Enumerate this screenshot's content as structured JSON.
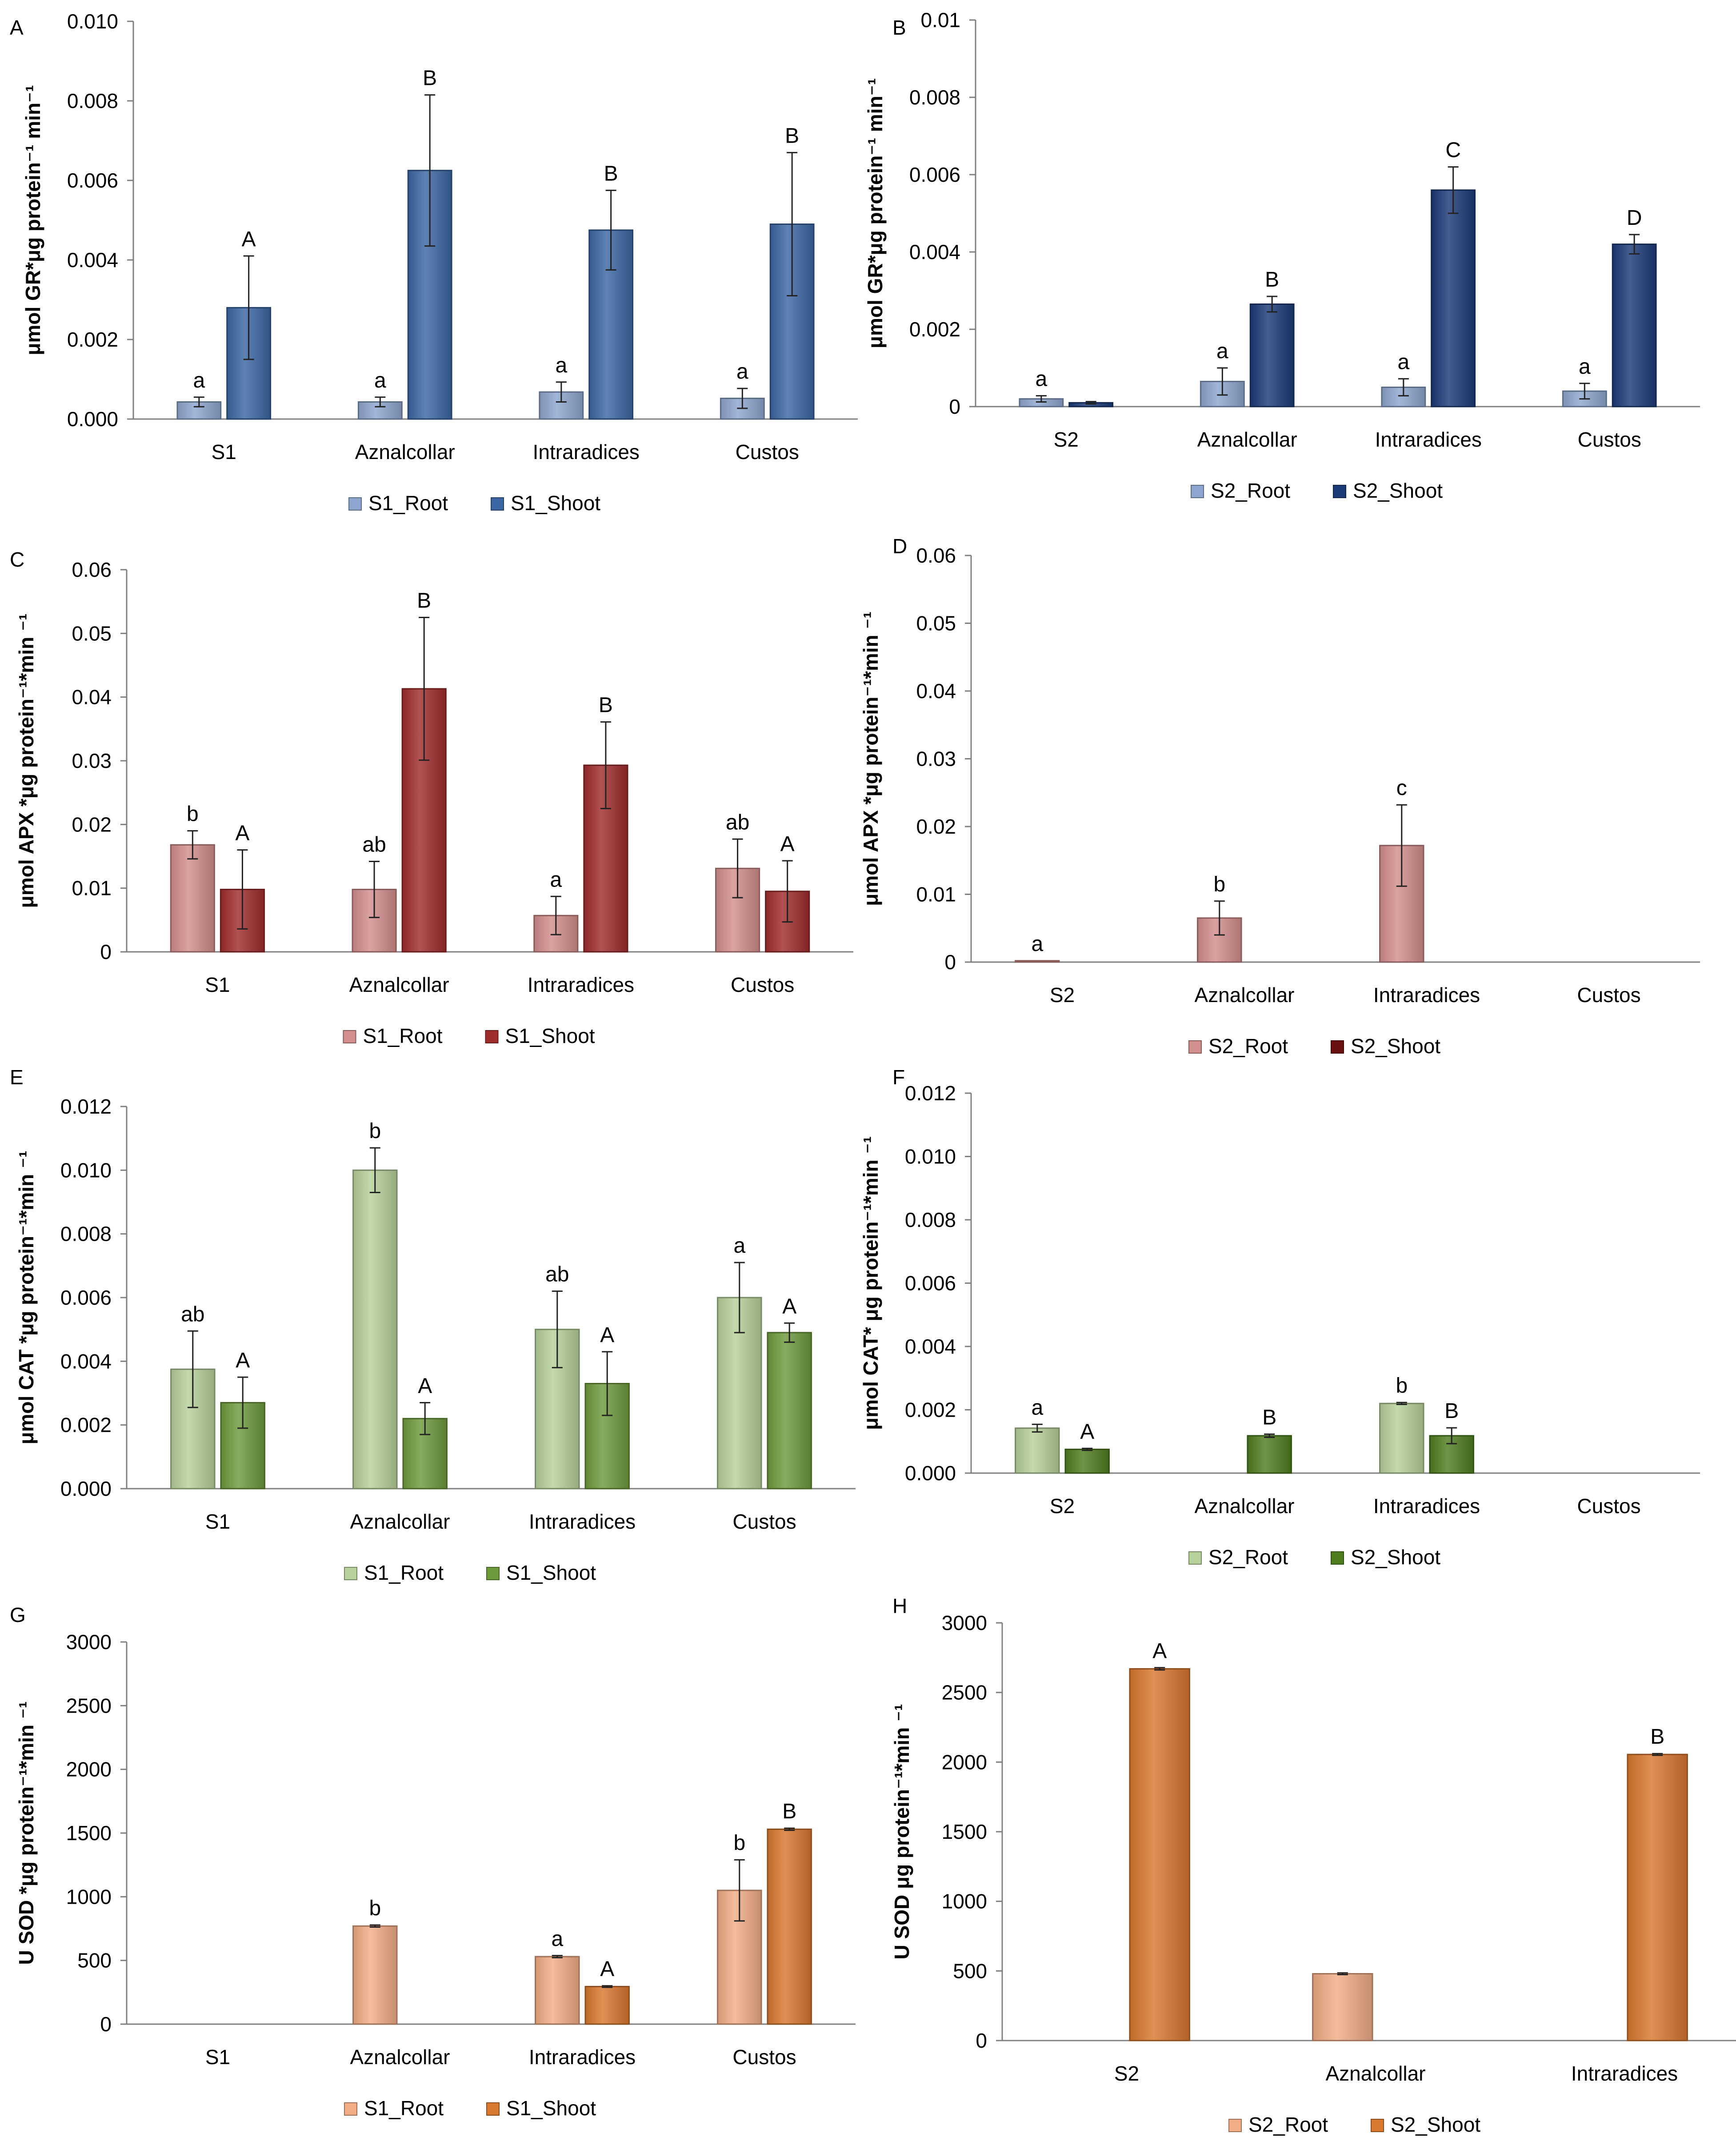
{
  "figure_title": "",
  "chart_data": [
    {
      "panel": "A",
      "type": "bar",
      "ylabel": "μmol GR*μg protein⁻¹ min⁻¹",
      "ylim": [
        0,
        0.01
      ],
      "yticks": [
        "0.000",
        "0.002",
        "0.004",
        "0.006",
        "0.008",
        "0.010"
      ],
      "categories": [
        "S1",
        "Aznalcollar",
        "Intraradices",
        "Custos"
      ],
      "series": [
        {
          "name": "S1_Root",
          "color": "#8ea6cf",
          "values": [
            0.00043,
            0.00043,
            0.00068,
            0.00052
          ],
          "errors": [
            0.00012,
            0.00012,
            0.00025,
            0.00025
          ],
          "letters": [
            "a",
            "a",
            "a",
            "a"
          ]
        },
        {
          "name": "S1_Shoot",
          "color": "#3b66a3",
          "values": [
            0.0028,
            0.00625,
            0.00475,
            0.0049
          ],
          "errors": [
            0.0013,
            0.0019,
            0.001,
            0.0018
          ],
          "letters": [
            "A",
            "B",
            "B",
            "B"
          ]
        }
      ],
      "grid": false,
      "legend": "bottom"
    },
    {
      "panel": "B",
      "type": "bar",
      "ylabel": "μmol GR*μg protein⁻¹ min⁻¹",
      "ylim": [
        0,
        0.01
      ],
      "yticks": [
        "0",
        "0.002",
        "0.004",
        "0.006",
        "0.008",
        "0.01"
      ],
      "categories": [
        "S2",
        "Aznalcollar",
        "Intraradices",
        "Custos"
      ],
      "series": [
        {
          "name": "S2_Root",
          "color": "#8ea6cf",
          "values": [
            0.0002,
            0.00065,
            0.0005,
            0.0004
          ],
          "errors": [
            8e-05,
            0.00035,
            0.00022,
            0.0002
          ],
          "letters": [
            "a",
            "a",
            "a",
            "a"
          ]
        },
        {
          "name": "S2_Shoot",
          "color": "#1b3a78",
          "values": [
            0.0001,
            0.00265,
            0.0056,
            0.0042
          ],
          "errors": [
            3e-05,
            0.0002,
            0.0006,
            0.00025
          ],
          "letters": [
            "",
            "B",
            "C",
            "D"
          ]
        }
      ],
      "grid": false,
      "legend": "bottom"
    },
    {
      "panel": "C",
      "type": "bar",
      "ylabel": "μmol APX *μg protein⁻¹*min ⁻¹",
      "ylim": [
        0,
        0.06
      ],
      "yticks": [
        "0",
        "0.01",
        "0.02",
        "0.03",
        "0.04",
        "0.05",
        "0.06"
      ],
      "categories": [
        "S1",
        "Aznalcollar",
        "Intraradices",
        "Custos"
      ],
      "series": [
        {
          "name": "S1_Root",
          "color": "#d38e8e",
          "values": [
            0.0168,
            0.0098,
            0.0057,
            0.0131
          ],
          "errors": [
            0.0022,
            0.0044,
            0.003,
            0.0046
          ],
          "letters": [
            "b",
            "ab",
            "a",
            "ab"
          ]
        },
        {
          "name": "S1_Shoot",
          "color": "#a02c2c",
          "values": [
            0.0098,
            0.0413,
            0.0293,
            0.0095
          ],
          "errors": [
            0.0062,
            0.0112,
            0.0068,
            0.0048
          ],
          "letters": [
            "A",
            "B",
            "B",
            "A"
          ]
        }
      ],
      "grid": false,
      "legend": "bottom"
    },
    {
      "panel": "D",
      "type": "bar",
      "ylabel": "μmol APX *μg protein⁻¹*min ⁻¹",
      "ylim": [
        0,
        0.06
      ],
      "yticks": [
        "0",
        "0.01",
        "0.02",
        "0.03",
        "0.04",
        "0.05",
        "0.06"
      ],
      "categories": [
        "S2",
        "Aznalcollar",
        "Intraradices",
        "Custos"
      ],
      "series": [
        {
          "name": "S2_Root",
          "color": "#d38e8e",
          "values": [
            0.0002,
            0.0065,
            0.0172,
            0
          ],
          "errors": [
            0,
            0.0025,
            0.006,
            0
          ],
          "letters": [
            "a",
            "b",
            "c",
            ""
          ]
        },
        {
          "name": "S2_Shoot",
          "color": "#6b1010",
          "values": [
            0,
            0,
            0,
            0
          ],
          "errors": [
            0,
            0,
            0,
            0
          ],
          "letters": [
            "",
            "",
            "",
            ""
          ]
        }
      ],
      "grid": false,
      "legend": "bottom"
    },
    {
      "panel": "E",
      "type": "bar",
      "ylabel": "μmol CAT *μg protein⁻¹*min ⁻¹",
      "ylim": [
        0,
        0.012
      ],
      "yticks": [
        "0.000",
        "0.002",
        "0.004",
        "0.006",
        "0.008",
        "0.010",
        "0.012"
      ],
      "categories": [
        "S1",
        "Aznalcollar",
        "Intraradices",
        "Custos"
      ],
      "series": [
        {
          "name": "S1_Root",
          "color": "#b7d19a",
          "values": [
            0.00375,
            0.01,
            0.005,
            0.006
          ],
          "errors": [
            0.0012,
            0.0007,
            0.0012,
            0.0011
          ],
          "letters": [
            "ab",
            "b",
            "ab",
            "a"
          ]
        },
        {
          "name": "S1_Shoot",
          "color": "#6e9a3c",
          "values": [
            0.0027,
            0.0022,
            0.0033,
            0.0049
          ],
          "errors": [
            0.0008,
            0.0005,
            0.001,
            0.0003
          ],
          "letters": [
            "A",
            "A",
            "A",
            "A"
          ]
        }
      ],
      "grid": false,
      "legend": "bottom"
    },
    {
      "panel": "F",
      "type": "bar",
      "ylabel": "μmol CAT* μg protein⁻¹*min ⁻¹",
      "ylim": [
        0,
        0.012
      ],
      "yticks": [
        "0.000",
        "0.002",
        "0.004",
        "0.006",
        "0.008",
        "0.010",
        "0.012"
      ],
      "categories": [
        "S2",
        "Aznalcollar",
        "Intraradices",
        "Custos"
      ],
      "series": [
        {
          "name": "S2_Root",
          "color": "#b7d19a",
          "values": [
            0.00142,
            0,
            0.0022,
            0
          ],
          "errors": [
            0.00012,
            0,
            3e-05,
            0
          ],
          "letters": [
            "a",
            "",
            "b",
            ""
          ]
        },
        {
          "name": "S2_Shoot",
          "color": "#4f7d1e",
          "values": [
            0.00075,
            0.00118,
            0.00118,
            0
          ],
          "errors": [
            3e-05,
            5e-05,
            0.00025,
            0
          ],
          "letters": [
            "A",
            "B",
            "B",
            ""
          ]
        }
      ],
      "grid": false,
      "legend": "bottom"
    },
    {
      "panel": "G",
      "type": "bar",
      "ylabel": "U SOD *μg protein⁻¹*min ⁻¹",
      "ylim": [
        0,
        3000
      ],
      "yticks": [
        "0",
        "500",
        "1000",
        "1500",
        "2000",
        "2500",
        "3000"
      ],
      "categories": [
        "S1",
        "Aznalcollar",
        "Intraradices",
        "Custos"
      ],
      "series": [
        {
          "name": "S1_Root",
          "color": "#f2ad86",
          "values": [
            0,
            770,
            530,
            1050
          ],
          "errors": [
            0,
            8,
            8,
            240
          ],
          "letters": [
            "",
            "b",
            "a",
            "b"
          ]
        },
        {
          "name": "S1_Shoot",
          "color": "#d9782f",
          "values": [
            0,
            0,
            295,
            1530
          ],
          "errors": [
            0,
            0,
            6,
            8
          ],
          "letters": [
            "",
            "",
            "A",
            "B"
          ]
        }
      ],
      "grid": false,
      "legend": "bottom"
    },
    {
      "panel": "H",
      "type": "bar",
      "ylabel": "U SOD μg protein⁻¹*min ⁻¹",
      "ylim": [
        0,
        3000
      ],
      "yticks": [
        "0",
        "500",
        "1000",
        "1500",
        "2000",
        "2500",
        "3000"
      ],
      "categories": [
        "S2",
        "Aznalcollar",
        "Intraradices"
      ],
      "series": [
        {
          "name": "S2_Root",
          "color": "#f2ad86",
          "values": [
            0,
            480,
            0
          ],
          "errors": [
            0,
            6,
            0
          ],
          "letters": [
            "",
            "",
            ""
          ]
        },
        {
          "name": "S2_Shoot",
          "color": "#d9782f",
          "values": [
            2670,
            0,
            2055
          ],
          "errors": [
            8,
            0,
            6
          ],
          "letters": [
            "A",
            "",
            "B"
          ]
        }
      ],
      "grid": false,
      "legend": "bottom"
    }
  ]
}
